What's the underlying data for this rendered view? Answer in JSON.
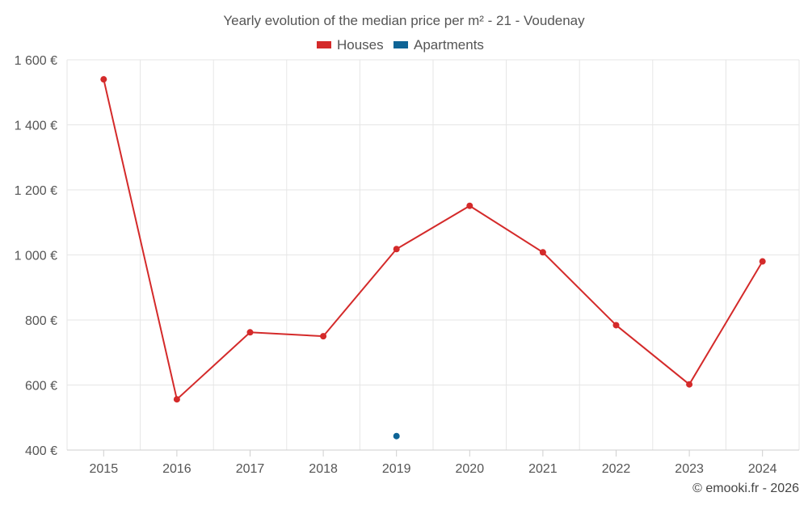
{
  "chart_data": {
    "type": "line",
    "title": "Yearly evolution of the median price per m² - 21 - Voudenay",
    "categories": [
      "2015",
      "2016",
      "2017",
      "2018",
      "2019",
      "2020",
      "2021",
      "2022",
      "2023",
      "2024"
    ],
    "series": [
      {
        "name": "Houses",
        "color": "#d42a2a",
        "values": [
          1540,
          556,
          762,
          750,
          1018,
          1151,
          1008,
          784,
          602,
          980
        ]
      },
      {
        "name": "Apartments",
        "color": "#0e6496",
        "values": [
          null,
          null,
          null,
          null,
          443,
          null,
          null,
          null,
          null,
          null
        ]
      }
    ],
    "ylim": [
      400,
      1600
    ],
    "yticks": [
      {
        "value": 400,
        "label": "400 €"
      },
      {
        "value": 600,
        "label": "600 €"
      },
      {
        "value": 800,
        "label": "800 €"
      },
      {
        "value": 1000,
        "label": "1 000 €"
      },
      {
        "value": 1200,
        "label": "1 200 €"
      },
      {
        "value": 1400,
        "label": "1 400 €"
      },
      {
        "value": 1600,
        "label": "1 600 €"
      }
    ],
    "xlabel": "",
    "ylabel": "",
    "legend_position": "top-center",
    "grid": true
  },
  "credit": "© emooki.fr - 2026"
}
